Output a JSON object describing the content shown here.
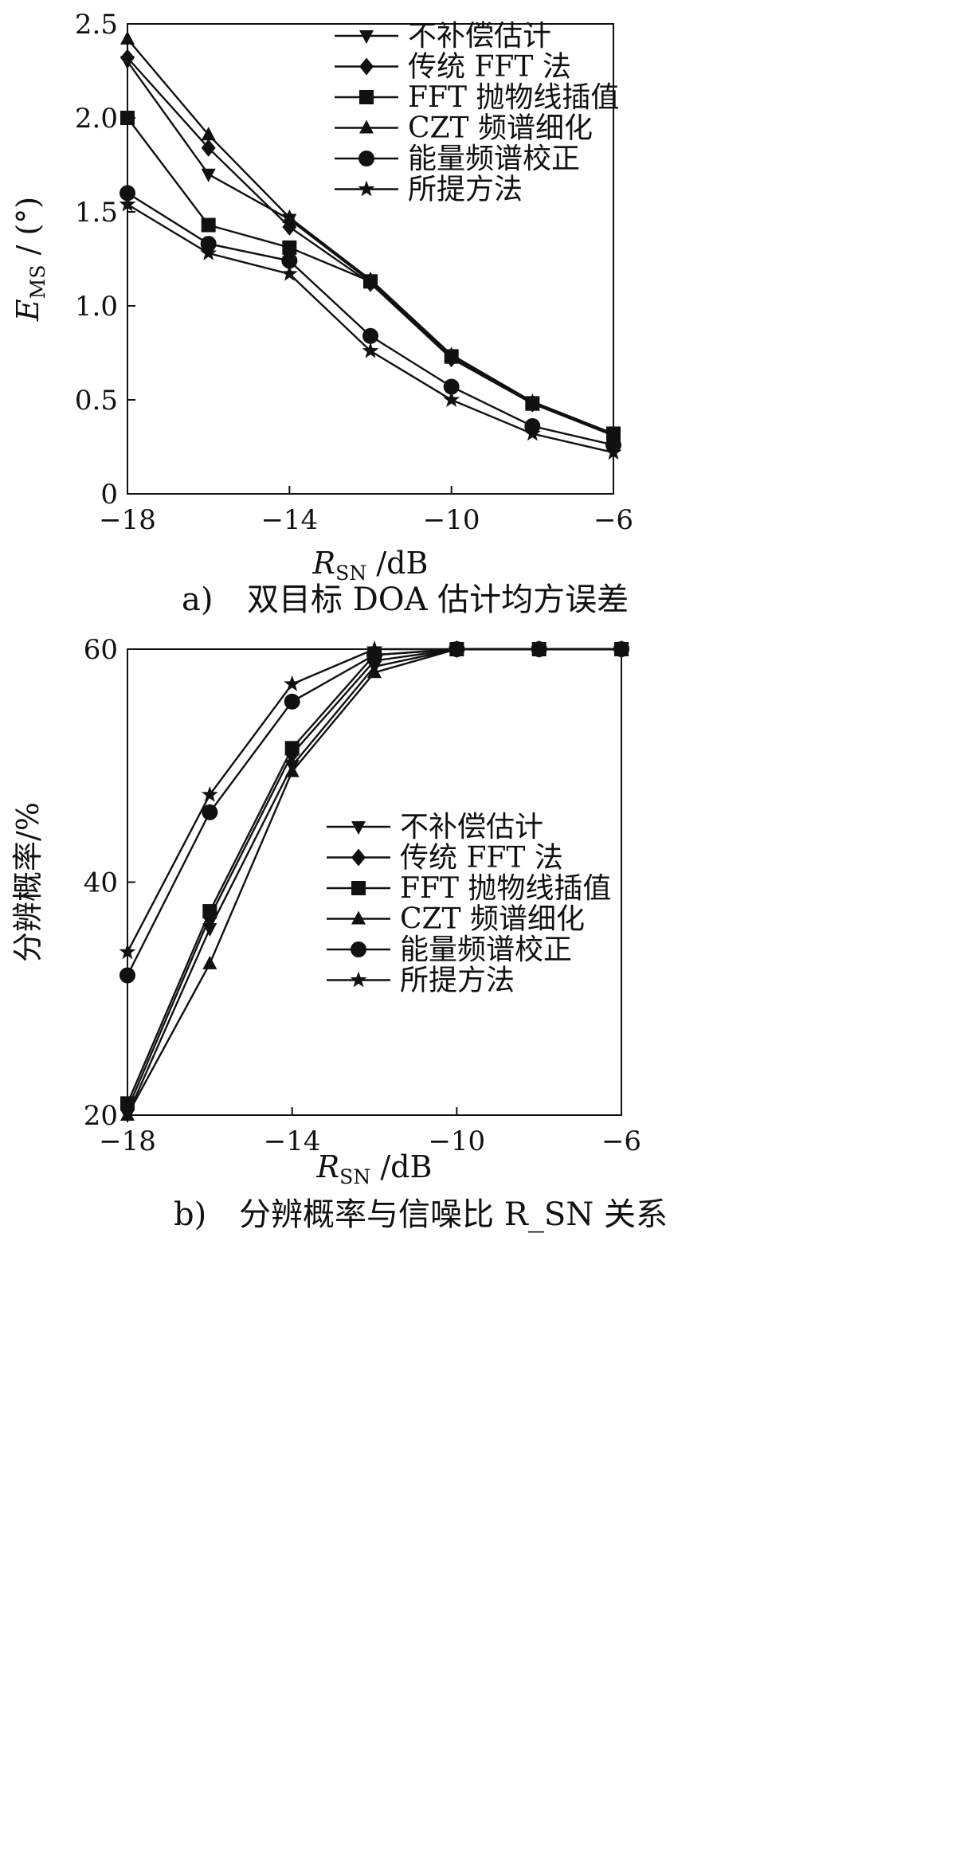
{
  "chart_data": [
    {
      "type": "line",
      "caption_label": "a)",
      "caption_text": "双目标 DOA 估计均方误差",
      "xlabel": "R_SN /dB",
      "ylabel": "E_MS / (°)",
      "xlim": [
        -18,
        -6
      ],
      "ylim": [
        0,
        2.5
      ],
      "xticks": [
        "-18",
        "-14",
        "-10",
        "-6"
      ],
      "yticks": [
        "0",
        "0.5",
        "1.0",
        "1.5",
        "2.0",
        "2.5"
      ],
      "legend_position": "top-right",
      "grid": false,
      "x": [
        -18,
        -16,
        -14,
        -12,
        -10,
        -8,
        -6
      ],
      "series": [
        {
          "name": "不补偿估计",
          "marker": "triangle-down",
          "values": [
            2.3,
            1.7,
            1.46,
            1.13,
            0.74,
            0.49,
            0.32
          ]
        },
        {
          "name": "传统 FFT 法",
          "marker": "diamond",
          "values": [
            2.32,
            1.84,
            1.42,
            1.12,
            0.72,
            0.48,
            0.31
          ]
        },
        {
          "name": "FFT 抛物线插值",
          "marker": "square",
          "values": [
            2.0,
            1.43,
            1.31,
            1.13,
            0.73,
            0.48,
            0.32
          ]
        },
        {
          "name": "CZT 频谱细化",
          "marker": "triangle-up",
          "values": [
            2.42,
            1.91,
            1.47,
            1.14,
            0.74,
            0.49,
            0.32
          ]
        },
        {
          "name": "能量频谱校正",
          "marker": "circle",
          "values": [
            1.6,
            1.33,
            1.24,
            0.84,
            0.57,
            0.36,
            0.26
          ]
        },
        {
          "name": "所提方法",
          "marker": "star",
          "values": [
            1.54,
            1.28,
            1.17,
            0.76,
            0.5,
            0.32,
            0.22
          ]
        }
      ]
    },
    {
      "type": "line",
      "caption_label": "b)",
      "caption_text": "分辨概率与信噪比 R_SN 关系",
      "xlabel": "R_SN /dB",
      "ylabel": "分辨概率/%",
      "xlim": [
        -18,
        -6
      ],
      "ylim": [
        20,
        60
      ],
      "xticks": [
        "-18",
        "-14",
        "-10",
        "-6"
      ],
      "yticks": [
        "20",
        "40",
        "60"
      ],
      "legend_position": "center-right",
      "grid": false,
      "x": [
        -18,
        -16,
        -14,
        -12,
        -10,
        -8,
        -6
      ],
      "series": [
        {
          "name": "不补偿估计",
          "marker": "triangle-down",
          "values": [
            20,
            36,
            50,
            58.5,
            60,
            60,
            60
          ]
        },
        {
          "name": "传统 FFT 法",
          "marker": "diamond",
          "values": [
            20.5,
            37,
            51,
            59,
            60,
            60,
            60
          ]
        },
        {
          "name": "FFT 抛物线插值",
          "marker": "square",
          "values": [
            21,
            37.5,
            51.5,
            59.5,
            60,
            60,
            60
          ]
        },
        {
          "name": "CZT 频谱细化",
          "marker": "triangle-up",
          "values": [
            20,
            33,
            49.5,
            58,
            60,
            60,
            60
          ]
        },
        {
          "name": "能量频谱校正",
          "marker": "circle",
          "values": [
            32,
            46,
            55.5,
            59.5,
            60,
            60,
            60
          ]
        },
        {
          "name": "所提方法",
          "marker": "star",
          "values": [
            34,
            47.5,
            57,
            60,
            60,
            60,
            60
          ]
        }
      ]
    }
  ]
}
